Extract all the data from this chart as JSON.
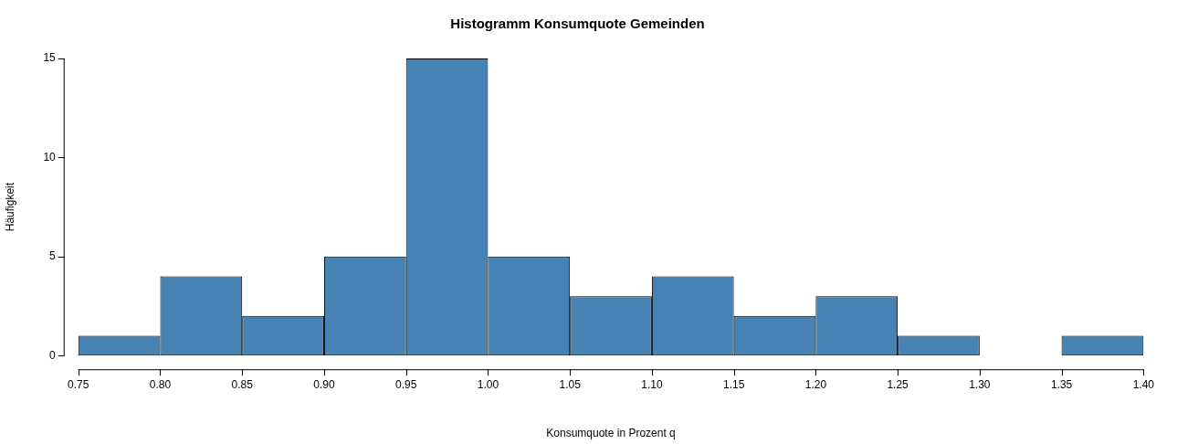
{
  "chart_data": {
    "type": "histogram",
    "title": "Histogramm Konsumquote Gemeinden",
    "xlabel": "Konsumquote in Prozent q",
    "ylabel": "Häufigkeit",
    "bins": [
      0.75,
      0.8,
      0.85,
      0.9,
      0.95,
      1.0,
      1.05,
      1.1,
      1.15,
      1.2,
      1.25,
      1.3,
      1.35,
      1.4
    ],
    "values": [
      1,
      4,
      2,
      5,
      15,
      5,
      3,
      4,
      2,
      3,
      1,
      0,
      1
    ],
    "color": "#4682b4",
    "xlim": [
      0.75,
      1.4
    ],
    "xticks": [
      {
        "value": 0.75,
        "label": "0.75"
      },
      {
        "value": 0.8,
        "label": "0.80"
      },
      {
        "value": 0.85,
        "label": "0.85"
      },
      {
        "value": 0.9,
        "label": "0.90"
      },
      {
        "value": 0.95,
        "label": "0.95"
      },
      {
        "value": 1.0,
        "label": "1.00"
      },
      {
        "value": 1.05,
        "label": "1.05"
      },
      {
        "value": 1.1,
        "label": "1.10"
      },
      {
        "value": 1.15,
        "label": "1.15"
      },
      {
        "value": 1.2,
        "label": "1.20"
      },
      {
        "value": 1.25,
        "label": "1.25"
      },
      {
        "value": 1.3,
        "label": "1.30"
      },
      {
        "value": 1.35,
        "label": "1.35"
      },
      {
        "value": 1.4,
        "label": "1.40"
      }
    ],
    "ylim": [
      0,
      15
    ],
    "yticks": [
      0,
      5,
      10,
      15
    ],
    "grid": false,
    "legend": false
  }
}
